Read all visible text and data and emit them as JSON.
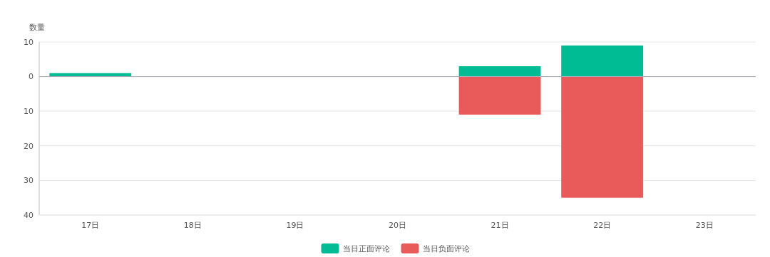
{
  "chart_data": {
    "type": "bar",
    "ylabel": "数量",
    "categories": [
      "17日",
      "18日",
      "19日",
      "20日",
      "21日",
      "22日",
      "23日"
    ],
    "stacked": true,
    "series": [
      {
        "name": "当日正面评论",
        "color": "#00bc94",
        "values": [
          1,
          0,
          0,
          0,
          3,
          9,
          0
        ]
      },
      {
        "name": "当日负面评论",
        "color": "#e95b5b",
        "values": [
          0,
          0,
          0,
          0,
          -11,
          -35,
          0
        ]
      }
    ],
    "ylim": [
      -40,
      10
    ],
    "yticks": [
      10,
      0,
      {
        "value": -10,
        "label": "10"
      },
      {
        "value": -20,
        "label": "20"
      },
      {
        "value": -30,
        "label": "30"
      },
      {
        "value": -40,
        "label": "40"
      }
    ],
    "grid": "y",
    "legend": "bottom"
  }
}
